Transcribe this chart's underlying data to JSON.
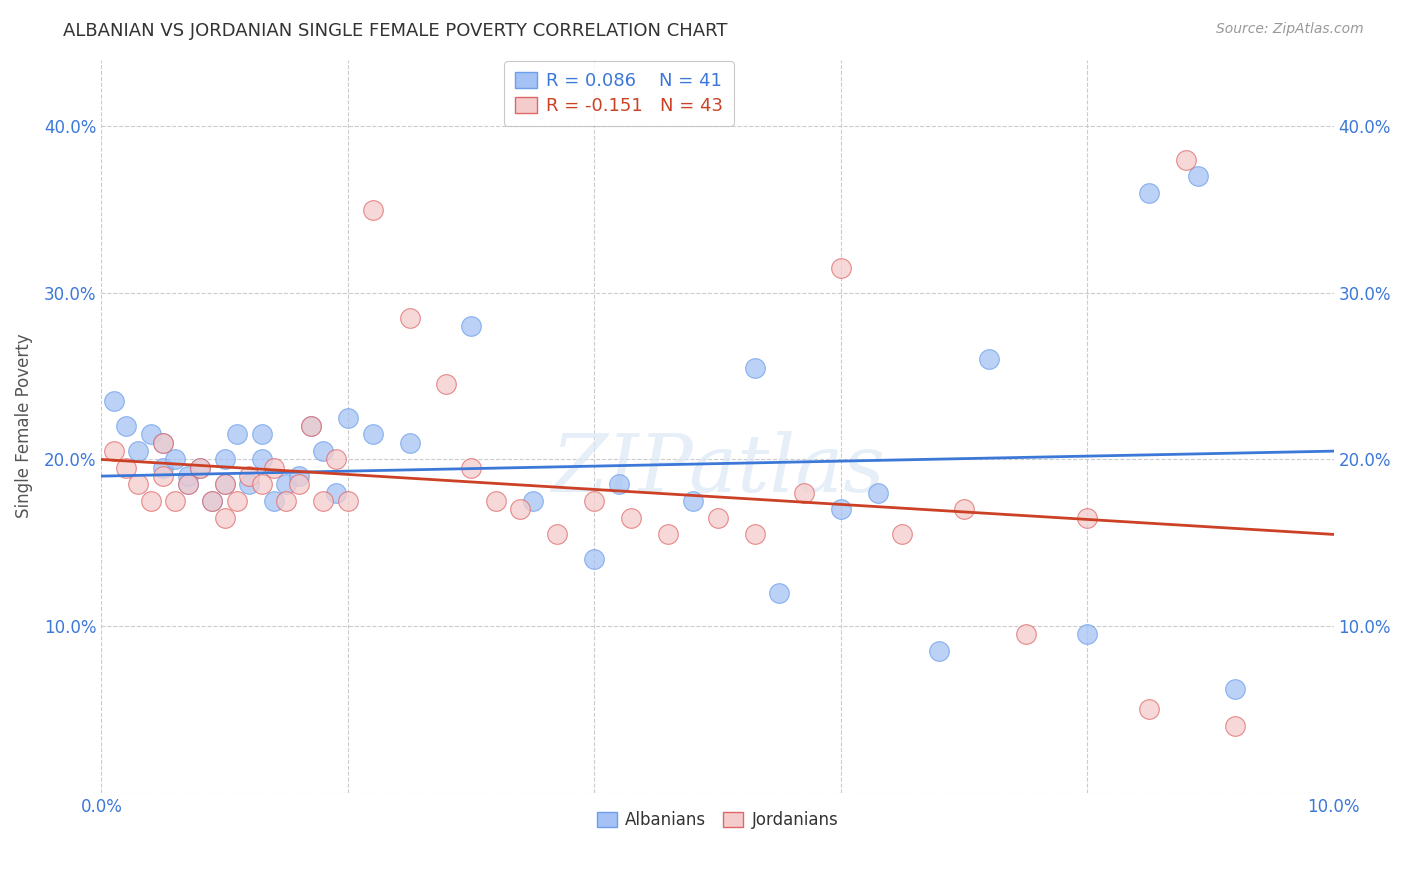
{
  "title": "ALBANIAN VS JORDANIAN SINGLE FEMALE POVERTY CORRELATION CHART",
  "source": "Source: ZipAtlas.com",
  "ylabel": "Single Female Poverty",
  "xlim": [
    0.0,
    0.1
  ],
  "ylim": [
    0.0,
    0.44
  ],
  "xticks": [
    0.0,
    0.02,
    0.04,
    0.06,
    0.08,
    0.1
  ],
  "xticklabels": [
    "0.0%",
    "",
    "",
    "",
    "",
    "10.0%"
  ],
  "yticks": [
    0.0,
    0.1,
    0.2,
    0.3,
    0.4
  ],
  "yticklabels": [
    "",
    "10.0%",
    "20.0%",
    "30.0%",
    "40.0%"
  ],
  "albanian_color": "#a4c2f4",
  "jordanian_color": "#f4cccc",
  "albanian_line_color": "#3c78d8",
  "jordanian_line_color": "#cc4125",
  "albanian_edge_color": "#6d9eeb",
  "jordanian_edge_color": "#e06666",
  "watermark": "ZIPatlas",
  "albanian_x": [
    0.001,
    0.002,
    0.003,
    0.004,
    0.005,
    0.005,
    0.006,
    0.007,
    0.007,
    0.008,
    0.009,
    0.01,
    0.01,
    0.011,
    0.012,
    0.013,
    0.013,
    0.014,
    0.015,
    0.016,
    0.017,
    0.018,
    0.019,
    0.02,
    0.022,
    0.025,
    0.03,
    0.035,
    0.04,
    0.042,
    0.048,
    0.053,
    0.055,
    0.06,
    0.063,
    0.068,
    0.072,
    0.08,
    0.085,
    0.089,
    0.092
  ],
  "albanian_y": [
    0.235,
    0.22,
    0.205,
    0.215,
    0.195,
    0.21,
    0.2,
    0.185,
    0.19,
    0.195,
    0.175,
    0.185,
    0.2,
    0.215,
    0.185,
    0.2,
    0.215,
    0.175,
    0.185,
    0.19,
    0.22,
    0.205,
    0.18,
    0.225,
    0.215,
    0.21,
    0.28,
    0.175,
    0.14,
    0.185,
    0.175,
    0.255,
    0.12,
    0.17,
    0.18,
    0.085,
    0.26,
    0.095,
    0.36,
    0.37,
    0.062
  ],
  "jordanian_x": [
    0.001,
    0.002,
    0.003,
    0.004,
    0.005,
    0.005,
    0.006,
    0.007,
    0.008,
    0.009,
    0.01,
    0.01,
    0.011,
    0.012,
    0.013,
    0.014,
    0.015,
    0.016,
    0.017,
    0.018,
    0.019,
    0.02,
    0.022,
    0.025,
    0.028,
    0.03,
    0.032,
    0.034,
    0.037,
    0.04,
    0.043,
    0.046,
    0.05,
    0.053,
    0.057,
    0.06,
    0.065,
    0.07,
    0.075,
    0.08,
    0.085,
    0.088,
    0.092
  ],
  "jordanian_y": [
    0.205,
    0.195,
    0.185,
    0.175,
    0.19,
    0.21,
    0.175,
    0.185,
    0.195,
    0.175,
    0.165,
    0.185,
    0.175,
    0.19,
    0.185,
    0.195,
    0.175,
    0.185,
    0.22,
    0.175,
    0.2,
    0.175,
    0.35,
    0.285,
    0.245,
    0.195,
    0.175,
    0.17,
    0.155,
    0.175,
    0.165,
    0.155,
    0.165,
    0.155,
    0.18,
    0.315,
    0.155,
    0.17,
    0.095,
    0.165,
    0.05,
    0.38,
    0.04
  ]
}
